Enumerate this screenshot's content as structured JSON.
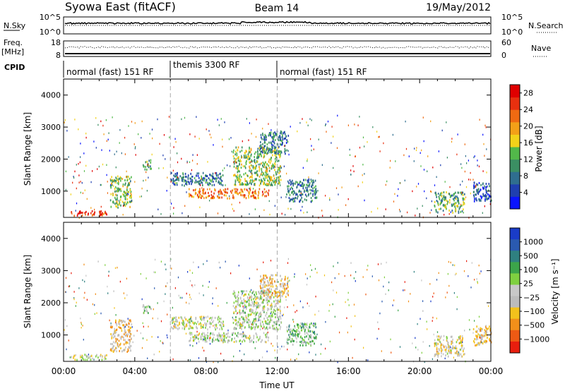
{
  "header": {
    "station": "Syowa East (fitACF)",
    "beam": "Beam 14",
    "date": "19/May/2012"
  },
  "noise_panel": {
    "left_label": "N.Sky",
    "right_label": "N.Search",
    "left_ticks": [
      "10^5",
      "10^0"
    ],
    "right_ticks": [
      "10^5",
      "10^0"
    ]
  },
  "freq_panel": {
    "left_label": "Freq.",
    "left_unit": "[MHz]",
    "right_label": "Nave",
    "left_ticks": [
      "18",
      "8"
    ],
    "right_ticks": [
      "60",
      "0"
    ]
  },
  "cpid": {
    "label": "CPID",
    "segments": [
      {
        "start_hour": 0,
        "end_hour": 6,
        "text": "normal (fast) 151 RF"
      },
      {
        "start_hour": 6,
        "end_hour": 12,
        "text": "themis 3300 RF"
      },
      {
        "start_hour": 12,
        "end_hour": 24,
        "text": "normal (fast) 151 RF"
      }
    ]
  },
  "colors": {
    "power_scale": [
      "#0a14ff",
      "#1f3fb0",
      "#2f6e8f",
      "#3b8f63",
      "#52b84a",
      "#f2d21a",
      "#f3a018",
      "#ef6a12",
      "#e8300f",
      "#e00000"
    ],
    "velocity_scale": [
      "#1a3cc8",
      "#2a5ab0",
      "#2f8080",
      "#3ca54a",
      "#7fd040",
      "#c8c8c8",
      "#bcbcbc",
      "#f3c21c",
      "#f2901a",
      "#ee5a14",
      "#e81e0e"
    ]
  },
  "chart_data": [
    {
      "type": "heatmap",
      "title": "",
      "xlabel": "",
      "ylabel": "Slant Range [km]",
      "x_range_hours": [
        0,
        24
      ],
      "ylim": [
        180,
        4500
      ],
      "x_ticks": [
        "00:00",
        "04:00",
        "08:00",
        "12:00",
        "16:00",
        "20:00",
        "00:00"
      ],
      "y_ticks": [
        1000,
        2000,
        3000,
        4000
      ],
      "colorbar": {
        "label": "Power [dB]",
        "ticks": [
          "4",
          "8",
          "12",
          "16",
          "20",
          "24",
          "28"
        ],
        "range": [
          0,
          30
        ]
      },
      "echo_regions": [
        {
          "t0": 0.4,
          "t1": 2.4,
          "r0": 250,
          "r1": 420,
          "value": 26
        },
        {
          "t0": 2.6,
          "t1": 3.8,
          "r0": 500,
          "r1": 1500,
          "value": 14
        },
        {
          "t0": 4.4,
          "t1": 4.9,
          "r0": 1700,
          "r1": 2000,
          "value": 10
        },
        {
          "t0": 6.0,
          "t1": 9.0,
          "r0": 1200,
          "r1": 1600,
          "value": 8
        },
        {
          "t0": 7.0,
          "t1": 11.5,
          "r0": 800,
          "r1": 1100,
          "value": 22
        },
        {
          "t0": 9.5,
          "t1": 12.2,
          "r0": 1200,
          "r1": 2400,
          "value": 14
        },
        {
          "t0": 11.0,
          "t1": 12.6,
          "r0": 2200,
          "r1": 2900,
          "value": 8
        },
        {
          "t0": 12.5,
          "t1": 14.2,
          "r0": 700,
          "r1": 1400,
          "value": 8
        },
        {
          "t0": 20.8,
          "t1": 22.5,
          "r0": 350,
          "r1": 1000,
          "value": 12
        },
        {
          "t0": 23.0,
          "t1": 24.0,
          "r0": 700,
          "r1": 1300,
          "value": 6
        }
      ]
    },
    {
      "type": "heatmap",
      "title": "",
      "xlabel": "Time UT",
      "ylabel": "Slant Range [km]",
      "x_range_hours": [
        0,
        24
      ],
      "ylim": [
        180,
        4500
      ],
      "x_ticks": [
        "00:00",
        "04:00",
        "08:00",
        "12:00",
        "16:00",
        "20:00",
        "00:00"
      ],
      "y_ticks": [
        1000,
        2000,
        3000,
        4000
      ],
      "colorbar": {
        "label": "Velocity [m s⁻¹]",
        "ticks": [
          "1000",
          "500",
          "100",
          "25",
          "−25",
          "−100",
          "−500",
          "−1000"
        ],
        "range": [
          -1000,
          1000
        ]
      },
      "echo_regions": [
        {
          "t0": 0.4,
          "t1": 2.4,
          "r0": 250,
          "r1": 420,
          "value": -100
        },
        {
          "t0": 2.6,
          "t1": 3.8,
          "r0": 500,
          "r1": 1500,
          "value": -300
        },
        {
          "t0": 4.4,
          "t1": 4.9,
          "r0": 1700,
          "r1": 2000,
          "value": 100
        },
        {
          "t0": 6.0,
          "t1": 9.0,
          "r0": 1200,
          "r1": 1600,
          "value": -50
        },
        {
          "t0": 7.0,
          "t1": 11.5,
          "r0": 800,
          "r1": 1100,
          "value": 0
        },
        {
          "t0": 9.5,
          "t1": 12.2,
          "r0": 1200,
          "r1": 2400,
          "value": 0
        },
        {
          "t0": 11.0,
          "t1": 12.6,
          "r0": 2200,
          "r1": 2900,
          "value": -300
        },
        {
          "t0": 12.5,
          "t1": 14.2,
          "r0": 700,
          "r1": 1400,
          "value": 200
        },
        {
          "t0": 20.8,
          "t1": 22.5,
          "r0": 350,
          "r1": 1000,
          "value": -200
        },
        {
          "t0": 23.0,
          "t1": 24.0,
          "r0": 700,
          "r1": 1300,
          "value": -300
        }
      ]
    }
  ]
}
